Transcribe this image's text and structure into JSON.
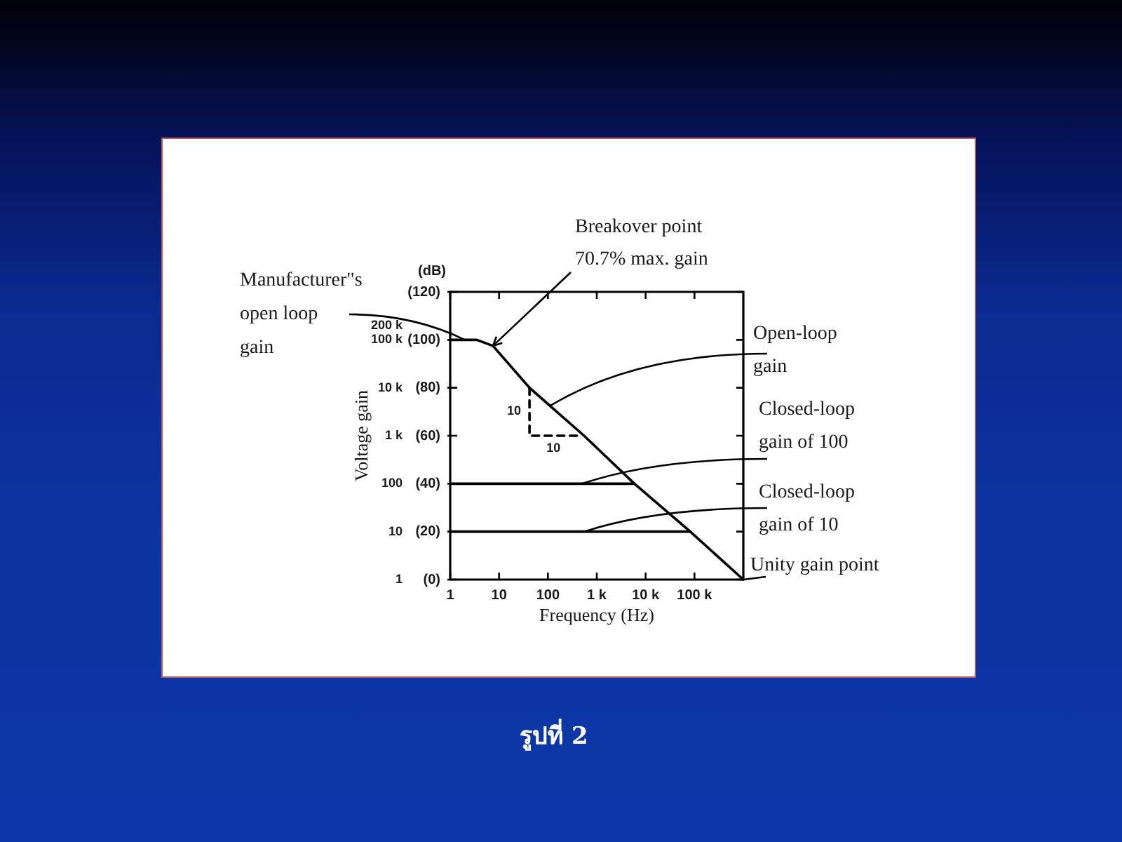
{
  "chart_data": {
    "type": "line",
    "xlabel": "Frequency (Hz)",
    "ylabel": "Voltage gain",
    "y2label": "(dB)",
    "log": "xy",
    "xlim": [
      1,
      1000000
    ],
    "ylim": [
      1,
      1000000
    ],
    "y2lim": [
      0,
      120
    ],
    "xticks": [
      1,
      10,
      100,
      {
        "value": 1000,
        "label": "1 k"
      },
      {
        "value": 10000,
        "label": "10 k"
      },
      {
        "value": 100000,
        "label": "100 k"
      }
    ],
    "yticks": [
      1,
      10,
      100,
      {
        "value": 1000,
        "label": "1 k"
      },
      {
        "value": 10000,
        "label": "10 k"
      },
      {
        "value": 100000,
        "label": "100 k"
      },
      {
        "value": 200000,
        "label": "200 k"
      }
    ],
    "y2ticks": [
      {
        "value": 0,
        "label": "(0)"
      },
      {
        "value": 20,
        "label": "(20)"
      },
      {
        "value": 40,
        "label": "(40)"
      },
      {
        "value": 60,
        "label": "(60)"
      },
      {
        "value": 80,
        "label": "(80)"
      },
      {
        "value": 100,
        "label": "(100)"
      },
      {
        "value": 120,
        "label": "(120)"
      }
    ],
    "grid": false,
    "legend": false,
    "marker": "none",
    "line_style": "solid",
    "series": [
      {
        "color": "#000000",
        "x": [
          1,
          3.5,
          7.5,
          42,
          550,
          5900,
          82000,
          1000000
        ],
        "values": [
          100000,
          100000,
          75000,
          10000,
          1000,
          100,
          10,
          1
        ]
      },
      {
        "color": "#000000",
        "x": [
          1,
          5900
        ],
        "values": [
          100,
          100
        ]
      },
      {
        "color": "#000000",
        "x": [
          1,
          82000
        ],
        "values": [
          10,
          10
        ]
      },
      {
        "color": "#000000",
        "line_style": "dashed",
        "x": [
          42,
          42,
          420
        ],
        "values": [
          10000,
          1000,
          1000
        ]
      }
    ],
    "annotations": [
      {
        "text": "Manufacturer\"s\nopen loop\ngain",
        "x": 2,
        "y": 100000
      },
      {
        "text": "Breakover point\n70.7% max. gain",
        "x": 7.5,
        "y": 75000
      },
      {
        "text": "Open-loop\ngain",
        "x": 110,
        "y": 4200
      },
      {
        "text": "Closed-loop\ngain of 100",
        "x": 500,
        "y": 100
      },
      {
        "text": "Closed-loop\ngain of 10",
        "x": 550,
        "y": 10
      },
      {
        "text": "Unity gain point",
        "x": 1000000,
        "y": 1
      },
      {
        "text": "10",
        "x": 42,
        "y": 3200
      },
      {
        "text": "10",
        "x": 130,
        "y": 1000
      },
      "รูปที่ 2"
    ]
  }
}
